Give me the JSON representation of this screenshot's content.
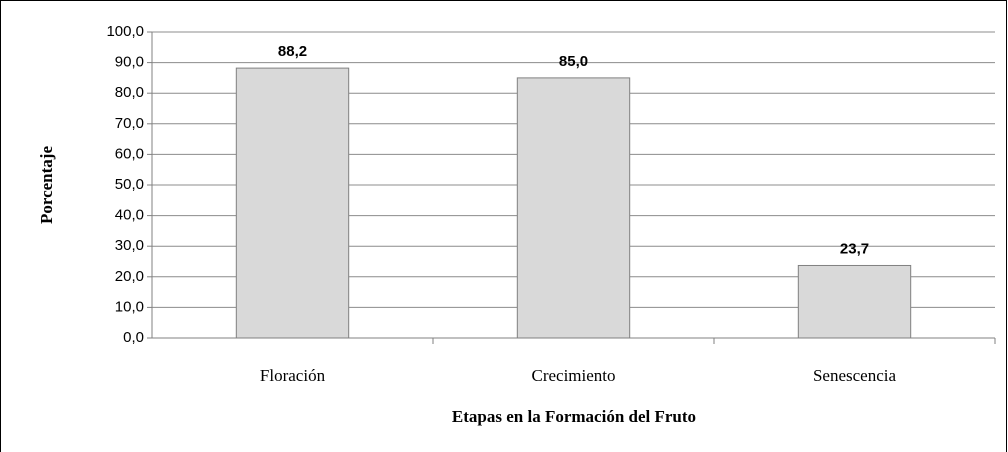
{
  "chart_data": {
    "type": "bar",
    "categories": [
      "Floración",
      "Crecimiento",
      "Senescencia"
    ],
    "values": [
      88.2,
      85.0,
      23.7
    ],
    "value_labels": [
      "88,2",
      "85,0",
      "23,7"
    ],
    "color": "#d9d9d9",
    "y_label": "Porcentaje",
    "x_label": "Etapas en la Formación del Fruto",
    "ylim": [
      0,
      100
    ],
    "yticks": [
      {
        "value": 0,
        "label": "0,0"
      },
      {
        "value": 10,
        "label": "10,0"
      },
      {
        "value": 20,
        "label": "20,0"
      },
      {
        "value": 30,
        "label": "30,0"
      },
      {
        "value": 40,
        "label": "40,0"
      },
      {
        "value": 50,
        "label": "50,0"
      },
      {
        "value": 60,
        "label": "60,0"
      },
      {
        "value": 70,
        "label": "70,0"
      },
      {
        "value": 80,
        "label": "80,0"
      },
      {
        "value": 90,
        "label": "90,0"
      },
      {
        "value": 100,
        "label": "100,0"
      }
    ],
    "grid": true
  }
}
